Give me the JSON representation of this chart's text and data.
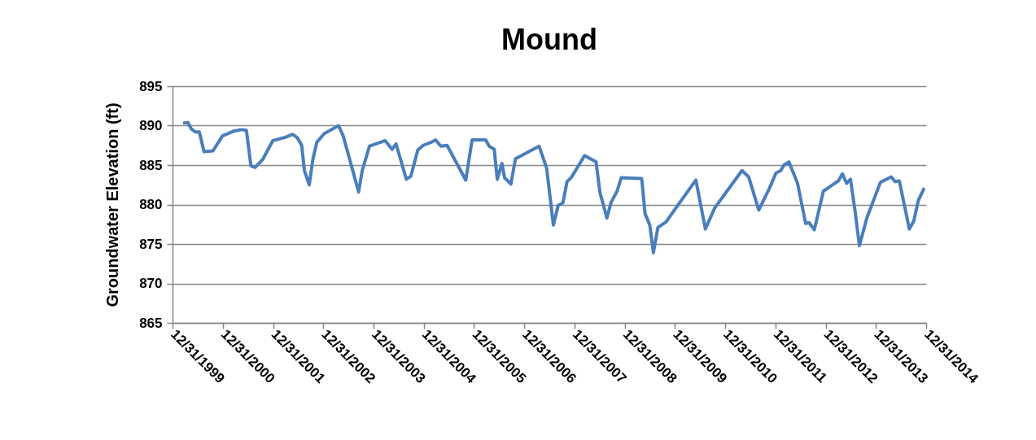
{
  "chart_data": {
    "type": "line",
    "title": "Mound",
    "ylabel": "Groundwater Elevation (ft)",
    "x": [
      "2000-03-17",
      "2000-04-21",
      "2000-05-15",
      "2000-06-14",
      "2000-07-13",
      "2000-08-16",
      "2000-10-20",
      "2000-12-28",
      "2001-03-18",
      "2001-05-16",
      "2001-06-20",
      "2001-07-23",
      "2001-08-22",
      "2001-10-16",
      "2001-12-29",
      "2002-03-27",
      "2002-05-21",
      "2002-06-24",
      "2002-07-27",
      "2002-08-16",
      "2002-09-20",
      "2002-10-16",
      "2002-11-14",
      "2003-01-07",
      "2003-04-21",
      "2003-05-25",
      "2003-09-14",
      "2003-10-10",
      "2003-12-02",
      "2004-03-25",
      "2004-05-14",
      "2004-06-12",
      "2004-08-26",
      "2004-09-28",
      "2004-11-17",
      "2004-12-26",
      "2005-02-24",
      "2005-03-26",
      "2005-05-04",
      "2005-06-18",
      "2005-11-01",
      "2005-12-17",
      "2006-03-26",
      "2006-04-20",
      "2006-05-27",
      "2006-06-18",
      "2006-07-22",
      "2006-08-10",
      "2006-09-25",
      "2006-10-28",
      "2007-04-18",
      "2007-06-12",
      "2007-07-31",
      "2007-09-04",
      "2007-10-08",
      "2007-11-07",
      "2007-12-07",
      "2008-03-14",
      "2008-06-05",
      "2008-07-04",
      "2008-08-23",
      "2008-09-23",
      "2008-11-05",
      "2008-12-05",
      "2009-05-03",
      "2009-05-28",
      "2009-07-01",
      "2009-07-27",
      "2009-08-29",
      "2009-10-27",
      "2010-01-04",
      "2010-06-01",
      "2010-08-09",
      "2010-10-17",
      "2011-05-02",
      "2011-06-20",
      "2011-09-01",
      "2011-11-19",
      "2012-01-04",
      "2012-02-08",
      "2012-03-02",
      "2012-04-07",
      "2012-06-09",
      "2012-08-07",
      "2012-09-02",
      "2012-10-09",
      "2012-12-14",
      "2013-04-02",
      "2013-05-01",
      "2013-05-31",
      "2013-06-29",
      "2013-08-02",
      "2013-09-02",
      "2013-10-26",
      "2014-02-01",
      "2014-04-21",
      "2014-05-20",
      "2014-06-19",
      "2014-08-31",
      "2014-10-02",
      "2014-11-04",
      "2014-12-17"
    ],
    "series": [
      {
        "color": "#4a7ebb",
        "values": [
          890.3,
          890.4,
          889.6,
          889.2,
          889.2,
          886.7,
          886.8,
          888.7,
          889.3,
          889.5,
          889.4,
          884.9,
          884.7,
          885.7,
          888.1,
          888.5,
          888.9,
          888.5,
          887.5,
          884.3,
          882.5,
          885.7,
          887.9,
          889.0,
          890.0,
          888.7,
          881.6,
          884.3,
          887.4,
          888.1,
          887.0,
          887.7,
          883.2,
          883.6,
          886.9,
          887.5,
          887.9,
          888.2,
          887.4,
          887.5,
          883.1,
          888.2,
          888.2,
          887.4,
          887.0,
          883.2,
          885.2,
          883.4,
          882.6,
          885.8,
          887.4,
          884.6,
          877.4,
          879.9,
          880.2,
          882.9,
          883.4,
          886.2,
          885.4,
          881.5,
          878.3,
          880.3,
          881.7,
          883.4,
          883.3,
          878.8,
          877.4,
          873.9,
          877.1,
          877.8,
          879.5,
          883.1,
          876.9,
          879.6,
          884.3,
          883.5,
          879.3,
          882.1,
          884.0,
          884.3,
          885.0,
          885.4,
          882.7,
          877.6,
          877.7,
          876.8,
          881.7,
          883.0,
          883.9,
          882.7,
          883.2,
          879.1,
          874.8,
          878.3,
          882.8,
          883.5,
          882.9,
          883.0,
          876.9,
          877.9,
          880.5,
          882.1
        ]
      }
    ],
    "xlim": [
      "1999-12-31",
      "2014-12-31"
    ],
    "xticks": [
      {
        "value": "1999-12-31",
        "label": "12/31/1999"
      },
      {
        "value": "2000-12-31",
        "label": "12/31/2000"
      },
      {
        "value": "2001-12-31",
        "label": "12/31/2001"
      },
      {
        "value": "2002-12-31",
        "label": "12/31/2002"
      },
      {
        "value": "2003-12-31",
        "label": "12/31/2003"
      },
      {
        "value": "2004-12-31",
        "label": "12/31/2004"
      },
      {
        "value": "2005-12-31",
        "label": "12/31/2005"
      },
      {
        "value": "2006-12-31",
        "label": "12/31/2006"
      },
      {
        "value": "2007-12-31",
        "label": "12/31/2007"
      },
      {
        "value": "2008-12-31",
        "label": "12/31/2008"
      },
      {
        "value": "2009-12-31",
        "label": "12/31/2009"
      },
      {
        "value": "2010-12-31",
        "label": "12/31/2010"
      },
      {
        "value": "2011-12-31",
        "label": "12/31/2011"
      },
      {
        "value": "2012-12-31",
        "label": "12/31/2012"
      },
      {
        "value": "2013-12-31",
        "label": "12/31/2013"
      },
      {
        "value": "2014-12-31",
        "label": "12/31/2014"
      }
    ],
    "ylim": [
      865,
      895
    ],
    "yticks": [
      865,
      870,
      875,
      880,
      885,
      890,
      895
    ],
    "grid": "y",
    "marker": "none",
    "line_style": "solid"
  }
}
